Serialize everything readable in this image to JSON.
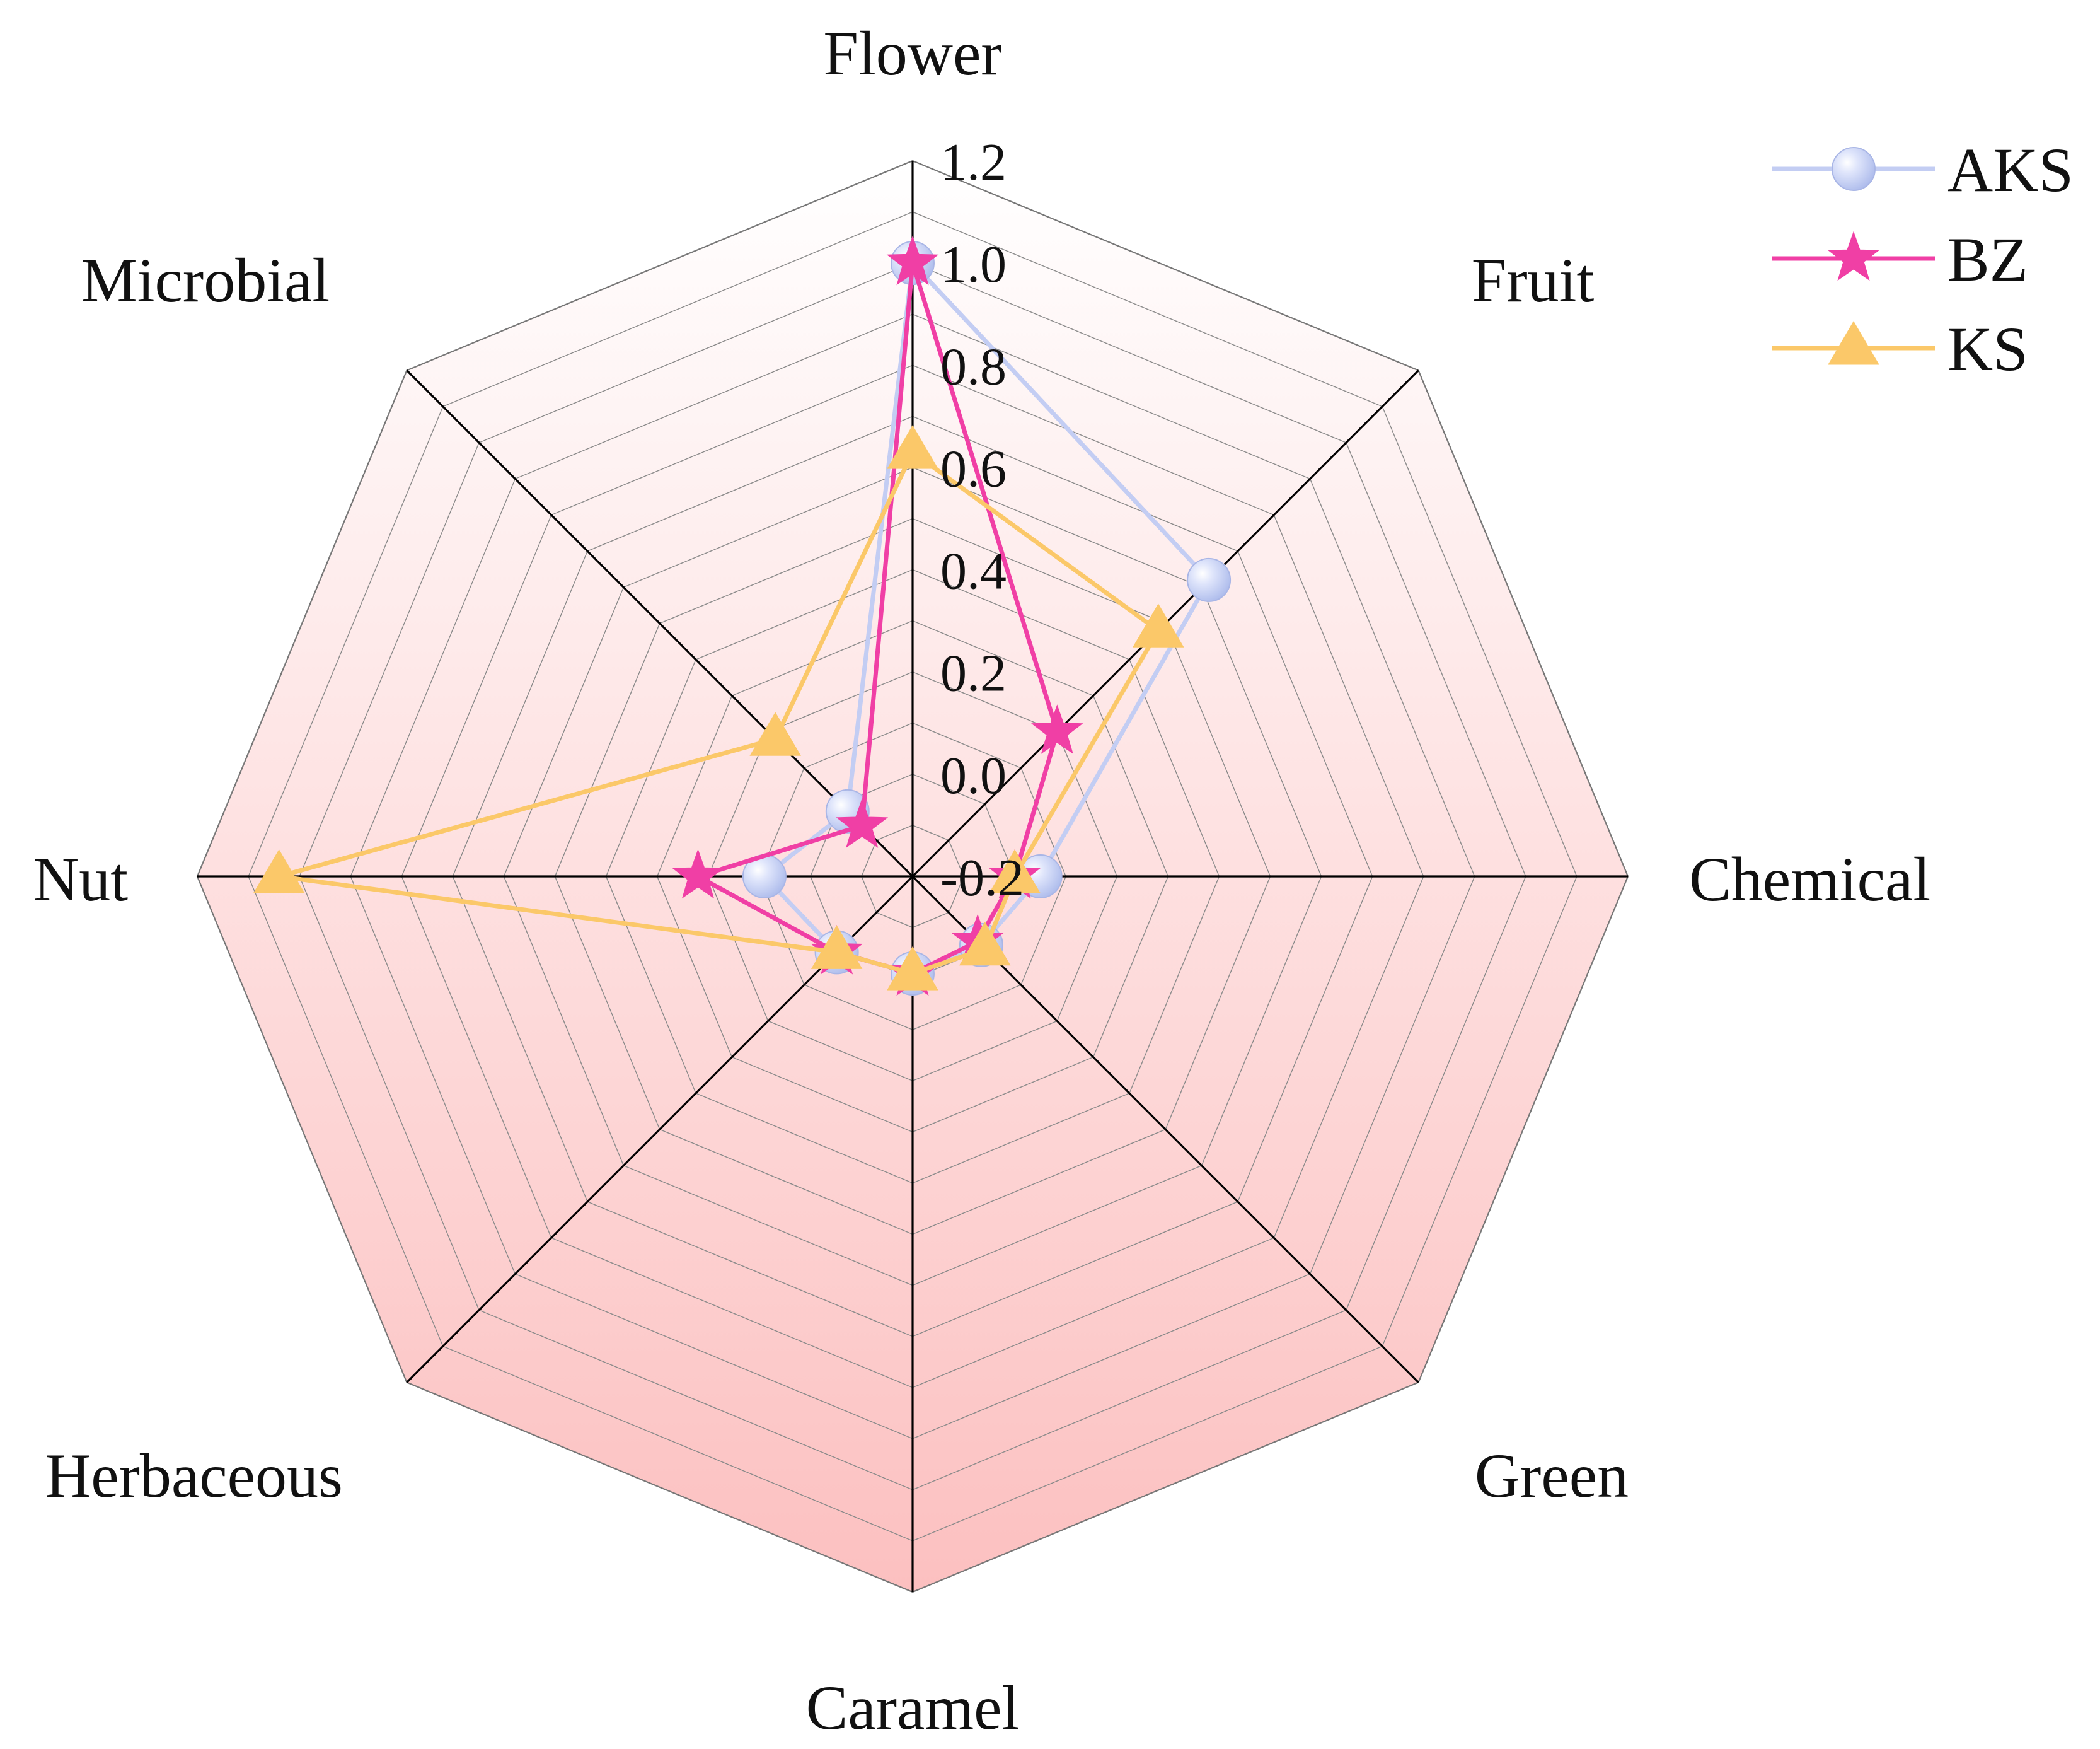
{
  "chart_data": {
    "type": "radar",
    "axes": [
      "Flower",
      "Fruit",
      "Chemical",
      "Green",
      "Caramel",
      "Herbaceous",
      "Nut",
      "Microbial"
    ],
    "r_range": [
      -0.2,
      1.2
    ],
    "ticks": [
      "-0.2",
      "0.0",
      "0.2",
      "0.4",
      "0.6",
      "0.8",
      "1.0",
      "1.2"
    ],
    "series": [
      {
        "name": "AKS",
        "marker": "circle",
        "color": "#c3cdf3",
        "values": [
          1.0,
          0.62,
          0.05,
          -0.01,
          -0.01,
          0.01,
          0.09,
          -0.02
        ]
      },
      {
        "name": "BZ",
        "marker": "star",
        "color": "#f03fa5",
        "values": [
          1.0,
          0.2,
          0.0,
          -0.02,
          -0.01,
          0.01,
          0.22,
          -0.06
        ]
      },
      {
        "name": "KS",
        "marker": "triangle",
        "color": "#fbc869",
        "values": [
          0.63,
          0.48,
          0.0,
          0.0,
          -0.01,
          0.01,
          1.04,
          0.18
        ]
      }
    ],
    "legend": "top-right",
    "background_gradient": [
      "#ffffff",
      "#fcc0c0"
    ],
    "grid": true
  }
}
